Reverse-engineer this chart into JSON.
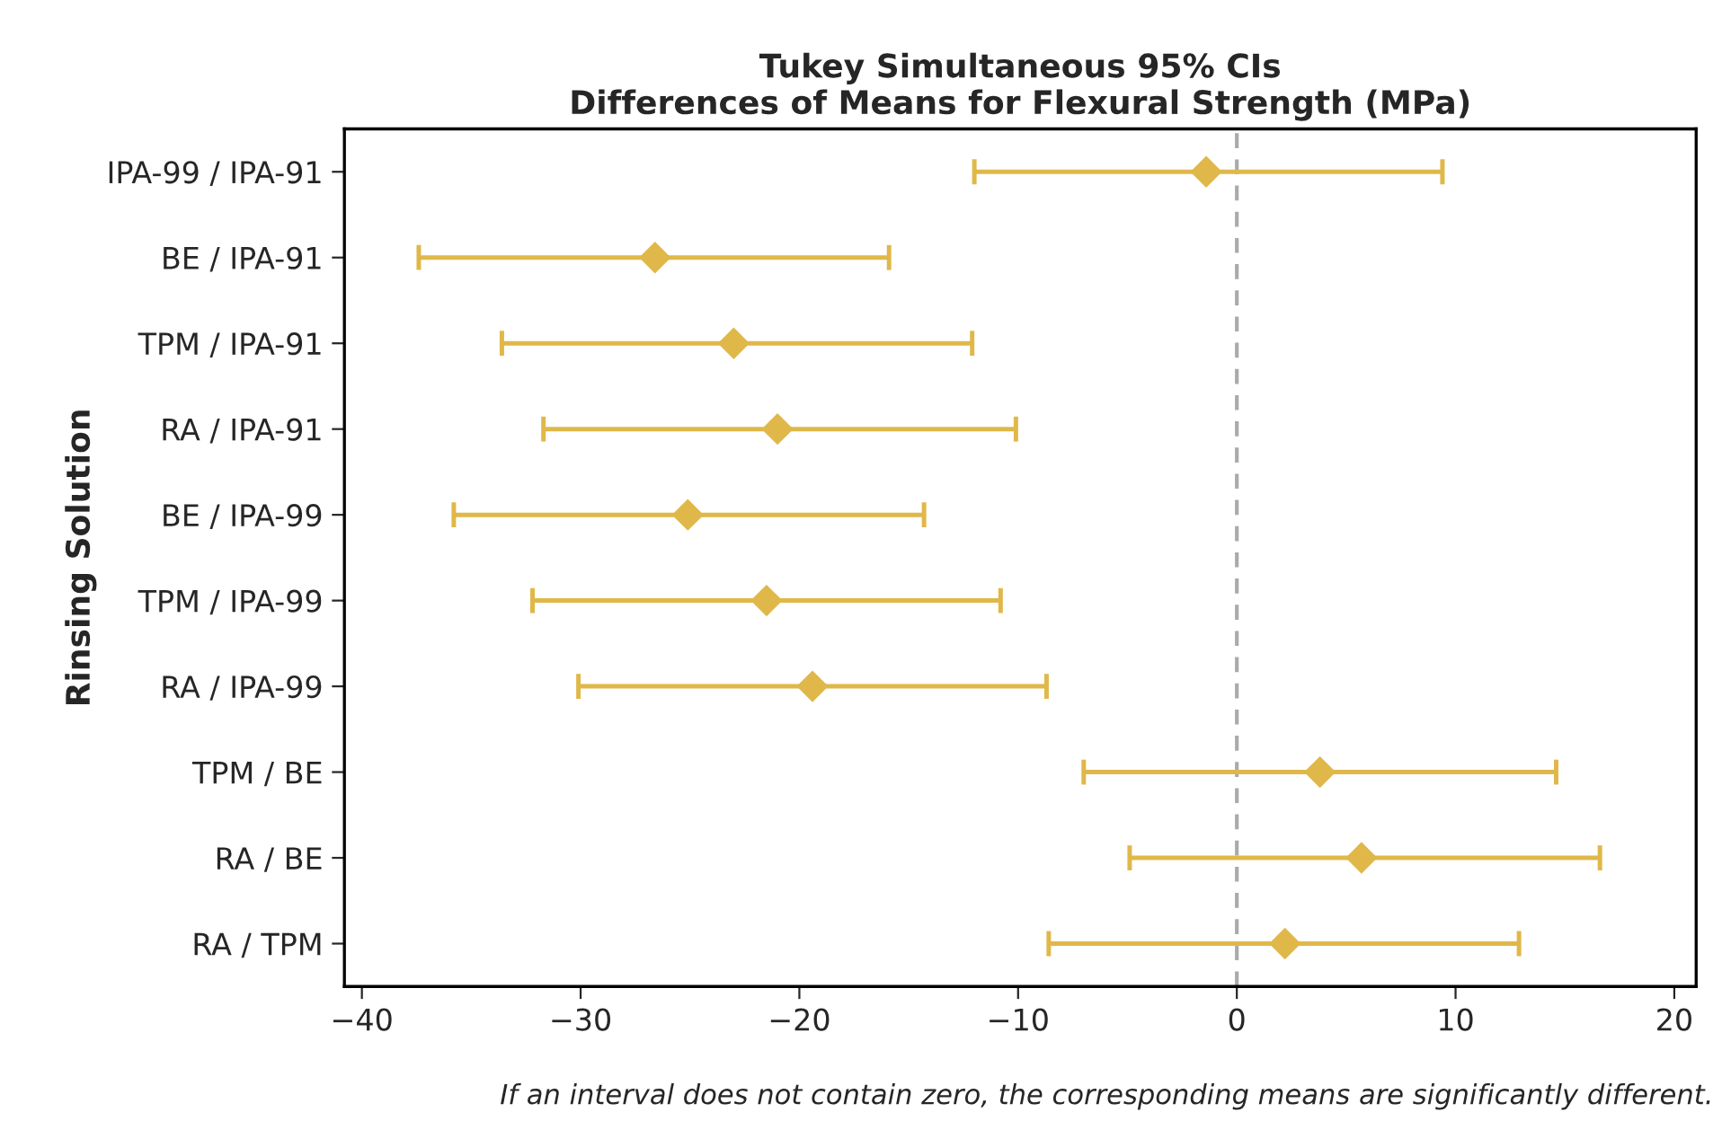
{
  "chart_data": {
    "type": "scatter",
    "orientation": "horizontal",
    "title": "Tukey Simultaneous 95% CIs\nDifferences of Means for Flexural Strength (MPa)",
    "ylabel": "Rinsing Solution",
    "categories": [
      "IPA-99 / IPA-91",
      "BE / IPA-91",
      "TPM / IPA-91",
      "RA / IPA-91",
      "BE / IPA-99",
      "TPM / IPA-99",
      "RA / IPA-99",
      "TPM / BE",
      "RA / BE",
      "RA / TPM"
    ],
    "values": [
      -1.4,
      -26.6,
      -23.0,
      -21.0,
      -25.1,
      -21.5,
      -19.4,
      3.8,
      5.7,
      2.2
    ],
    "errors": [
      [
        -12.0,
        9.4
      ],
      [
        -37.4,
        -15.9
      ],
      [
        -33.6,
        -12.1
      ],
      [
        -31.7,
        -10.1
      ],
      [
        -35.8,
        -14.3
      ],
      [
        -32.2,
        -10.8
      ],
      [
        -30.1,
        -8.7
      ],
      [
        -7.0,
        14.6
      ],
      [
        -4.9,
        16.6
      ],
      [
        -8.6,
        12.9
      ]
    ],
    "color": "#e0b84a",
    "marker": "diamond",
    "xlim": [
      -40.8,
      21.0
    ],
    "xticks": [
      {
        "value": -40,
        "label": "−40"
      },
      {
        "value": -30,
        "label": "−30"
      },
      {
        "value": -20,
        "label": "−20"
      },
      {
        "value": -10,
        "label": "−10"
      },
      0,
      10,
      20
    ],
    "ref_lines": [
      {
        "axis": "x",
        "value": 0,
        "color": "#aaaaaa",
        "line_style": "dashed"
      }
    ],
    "annotations": [
      "If an interval does not contain zero, the corresponding means are significantly different."
    ],
    "grid": false,
    "legend": false
  }
}
